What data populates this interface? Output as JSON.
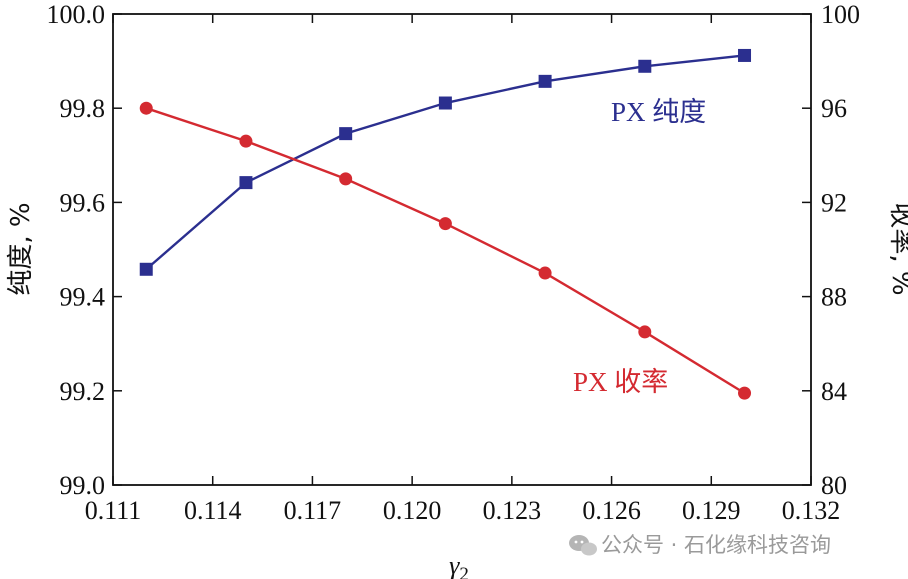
{
  "chart_data": {
    "type": "line",
    "xlabel_main": "γ",
    "xlabel_sub": "2",
    "ylabel_left": "纯度, %",
    "ylabel_right": "收率, %",
    "x": [
      0.112,
      0.115,
      0.118,
      0.121,
      0.124,
      0.127,
      0.13
    ],
    "xlim": [
      0.111,
      0.132
    ],
    "ylim_left": [
      99.0,
      100.0
    ],
    "ylim_right": [
      80,
      100
    ],
    "x_ticks": [
      "0.111",
      "0.114",
      "0.117",
      "0.120",
      "0.123",
      "0.126",
      "0.129",
      "0.132"
    ],
    "y_left_ticks": [
      "99.0",
      "99.2",
      "99.4",
      "99.6",
      "99.8",
      "100.0"
    ],
    "y_right_ticks": [
      "80",
      "84",
      "88",
      "92",
      "96",
      "100"
    ],
    "series": [
      {
        "name": "PX 纯度",
        "axis": "left",
        "marker": "square",
        "color": "#2b2f8f",
        "values": [
          99.458,
          99.642,
          99.746,
          99.811,
          99.857,
          99.889,
          99.912
        ]
      },
      {
        "name": "PX 收率",
        "axis": "right",
        "marker": "circle",
        "color": "#d42a31",
        "values": [
          96.0,
          94.6,
          93.0,
          91.1,
          89.0,
          86.5,
          83.9
        ]
      }
    ]
  },
  "watermark": {
    "text": "公众号 · 石化缘科技咨询",
    "icon": "wechat-icon"
  }
}
